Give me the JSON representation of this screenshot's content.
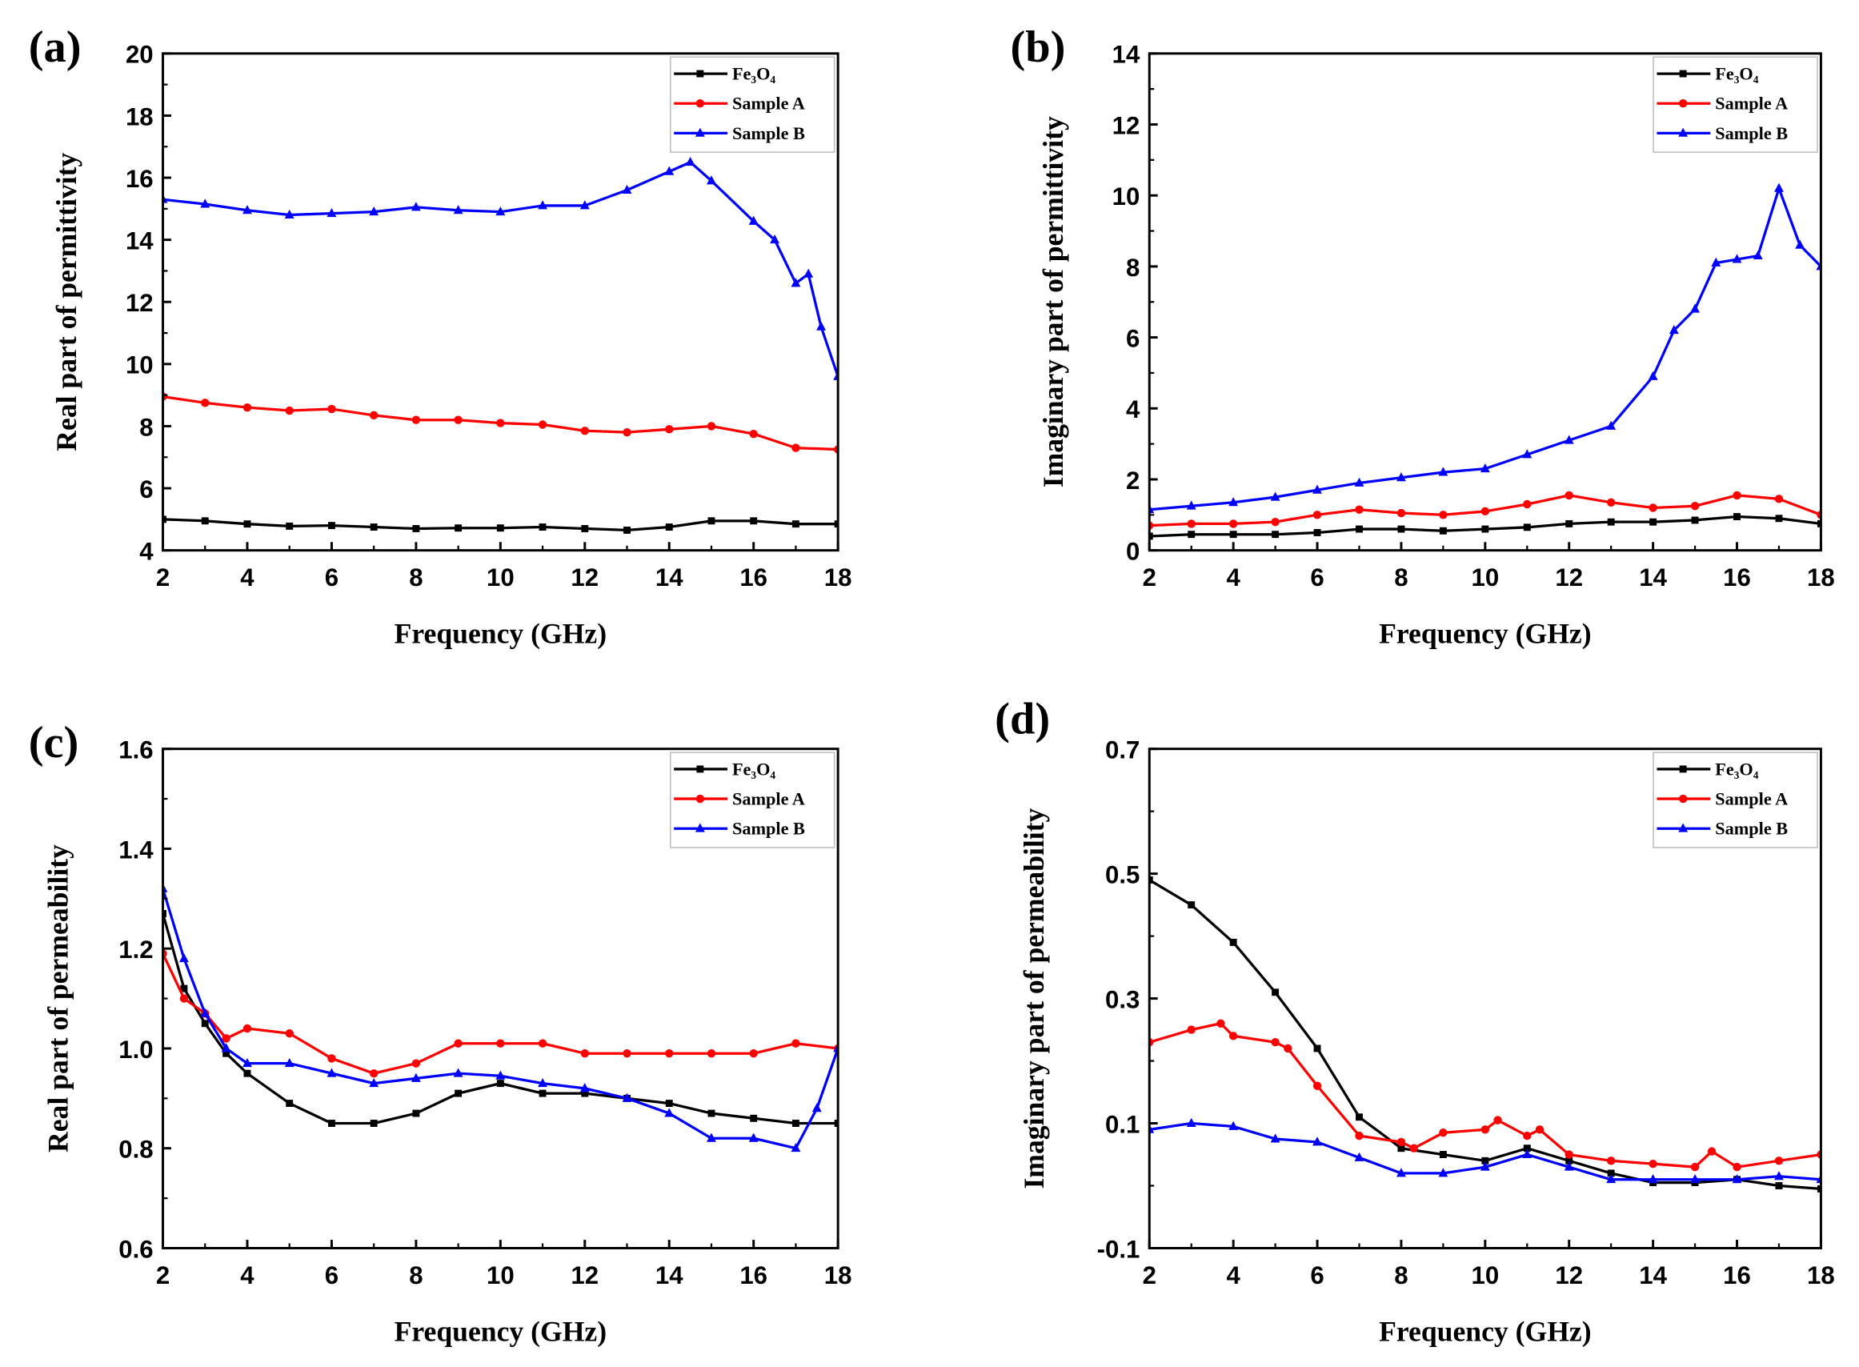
{
  "chart_data": [
    {
      "panel_label": "(a)",
      "type": "line",
      "xlabel": "Frequency (GHz)",
      "ylabel": "Real part of permittivity",
      "xlim": [
        2,
        18
      ],
      "ylim": [
        4,
        20
      ],
      "xticks": [
        "2",
        "4",
        "6",
        "8",
        "10",
        "12",
        "14",
        "16",
        "18"
      ],
      "yticks": [
        "4",
        "6",
        "8",
        "10",
        "12",
        "14",
        "16",
        "18",
        "20"
      ],
      "legend_position": "top-right",
      "series": [
        {
          "name": "Fe₃O₄",
          "color": "#000000",
          "marker": "square",
          "x": [
            2,
            3,
            4,
            5,
            6,
            7,
            8,
            9,
            10,
            11,
            12,
            13,
            14,
            15,
            16,
            17,
            18
          ],
          "y": [
            5.0,
            4.95,
            4.85,
            4.78,
            4.8,
            4.75,
            4.7,
            4.72,
            4.72,
            4.75,
            4.7,
            4.65,
            4.75,
            4.95,
            4.95,
            4.85,
            4.85
          ]
        },
        {
          "name": "Sample A",
          "color": "#ff0000",
          "marker": "circle",
          "x": [
            2,
            3,
            4,
            5,
            6,
            7,
            8,
            9,
            10,
            11,
            12,
            13,
            14,
            15,
            16,
            17,
            18
          ],
          "y": [
            8.95,
            8.75,
            8.6,
            8.5,
            8.55,
            8.35,
            8.2,
            8.2,
            8.1,
            8.05,
            7.85,
            7.8,
            7.9,
            8.0,
            7.75,
            7.3,
            7.25
          ]
        },
        {
          "name": "Sample B",
          "color": "#0000ff",
          "marker": "triangle",
          "x": [
            2,
            3,
            4,
            5,
            6,
            7,
            8,
            9,
            10,
            11,
            12,
            13,
            14,
            14.5,
            15,
            16,
            16.5,
            17,
            17.3,
            17.6,
            18
          ],
          "y": [
            15.3,
            15.15,
            14.95,
            14.8,
            14.85,
            14.9,
            15.05,
            14.95,
            14.9,
            15.1,
            15.1,
            15.6,
            16.2,
            16.5,
            15.9,
            14.6,
            14.0,
            12.6,
            12.9,
            11.2,
            9.6
          ]
        }
      ]
    },
    {
      "panel_label": "(b)",
      "type": "line",
      "xlabel": "Frequency (GHz)",
      "ylabel": "Imaginary part of permittivity",
      "xlim": [
        2,
        18
      ],
      "ylim": [
        0,
        14
      ],
      "xticks": [
        "2",
        "4",
        "6",
        "8",
        "10",
        "12",
        "14",
        "16",
        "18"
      ],
      "yticks": [
        "0",
        "2",
        "4",
        "6",
        "8",
        "10",
        "12",
        "14"
      ],
      "legend_position": "top-right",
      "series": [
        {
          "name": "Fe₃O₄",
          "color": "#000000",
          "marker": "square",
          "x": [
            2,
            3,
            4,
            5,
            6,
            7,
            8,
            9,
            10,
            11,
            12,
            13,
            14,
            15,
            16,
            17,
            18
          ],
          "y": [
            0.4,
            0.45,
            0.45,
            0.45,
            0.5,
            0.6,
            0.6,
            0.55,
            0.6,
            0.65,
            0.75,
            0.8,
            0.8,
            0.85,
            0.95,
            0.9,
            0.75
          ]
        },
        {
          "name": "Sample A",
          "color": "#ff0000",
          "marker": "circle",
          "x": [
            2,
            3,
            4,
            5,
            6,
            7,
            8,
            9,
            10,
            11,
            12,
            13,
            14,
            15,
            16,
            17,
            18
          ],
          "y": [
            0.7,
            0.75,
            0.75,
            0.8,
            1.0,
            1.15,
            1.05,
            1.0,
            1.1,
            1.3,
            1.55,
            1.35,
            1.2,
            1.25,
            1.55,
            1.45,
            1.0
          ]
        },
        {
          "name": "Sample B",
          "color": "#0000ff",
          "marker": "triangle",
          "x": [
            2,
            3,
            4,
            5,
            6,
            7,
            8,
            9,
            10,
            11,
            12,
            13,
            14,
            14.5,
            15,
            15.5,
            16,
            16.5,
            17,
            17.5,
            18
          ],
          "y": [
            1.15,
            1.25,
            1.35,
            1.5,
            1.7,
            1.9,
            2.05,
            2.2,
            2.3,
            2.7,
            3.1,
            3.5,
            4.9,
            6.2,
            6.8,
            8.1,
            8.2,
            8.3,
            10.2,
            8.6,
            8.0
          ]
        }
      ]
    },
    {
      "panel_label": "(c)",
      "type": "line",
      "xlabel": "Frequency (GHz)",
      "ylabel": "Real part of permeability",
      "xlim": [
        2,
        18
      ],
      "ylim": [
        0.6,
        1.6
      ],
      "xticks": [
        "2",
        "4",
        "6",
        "8",
        "10",
        "12",
        "14",
        "16",
        "18"
      ],
      "yticks": [
        "0.6",
        "0.8",
        "1.0",
        "1.2",
        "1.4",
        "1.6"
      ],
      "legend_position": "top-right",
      "series": [
        {
          "name": "Fe₃O₄",
          "color": "#000000",
          "marker": "square",
          "x": [
            2,
            2.5,
            3,
            3.5,
            4,
            5,
            6,
            7,
            8,
            9,
            10,
            11,
            12,
            13,
            14,
            15,
            16,
            17,
            18
          ],
          "y": [
            1.27,
            1.12,
            1.05,
            0.99,
            0.95,
            0.89,
            0.85,
            0.85,
            0.87,
            0.91,
            0.93,
            0.91,
            0.91,
            0.9,
            0.89,
            0.87,
            0.86,
            0.85,
            0.85
          ]
        },
        {
          "name": "Sample A",
          "color": "#ff0000",
          "marker": "circle",
          "x": [
            2,
            2.5,
            3,
            3.5,
            4,
            5,
            6,
            7,
            8,
            9,
            10,
            11,
            12,
            13,
            14,
            15,
            16,
            17,
            18
          ],
          "y": [
            1.19,
            1.1,
            1.07,
            1.02,
            1.04,
            1.03,
            0.98,
            0.95,
            0.97,
            1.01,
            1.01,
            1.01,
            0.99,
            0.99,
            0.99,
            0.99,
            0.99,
            1.01,
            1.0
          ]
        },
        {
          "name": "Sample B",
          "color": "#0000ff",
          "marker": "triangle",
          "x": [
            2,
            2.5,
            3,
            3.5,
            4,
            5,
            6,
            7,
            8,
            9,
            10,
            11,
            12,
            13,
            14,
            15,
            16,
            17,
            17.5,
            18
          ],
          "y": [
            1.32,
            1.18,
            1.07,
            1.0,
            0.97,
            0.97,
            0.95,
            0.93,
            0.94,
            0.95,
            0.945,
            0.93,
            0.92,
            0.9,
            0.87,
            0.82,
            0.82,
            0.8,
            0.88,
            1.0
          ]
        }
      ]
    },
    {
      "panel_label": "(d)",
      "type": "line",
      "xlabel": "Frequency (GHz)",
      "ylabel": "Imaginary part of permeability",
      "xlim": [
        2,
        18
      ],
      "ylim": [
        -0.1,
        0.7
      ],
      "xticks": [
        "2",
        "4",
        "6",
        "8",
        "10",
        "12",
        "14",
        "16",
        "18"
      ],
      "yticks": [
        "-0.1",
        "0.1",
        "0.3",
        "0.5",
        "0.7"
      ],
      "legend_position": "top-right",
      "series": [
        {
          "name": "Fe₃O₄",
          "color": "#000000",
          "marker": "square",
          "x": [
            2,
            3,
            4,
            5,
            6,
            7,
            8,
            9,
            10,
            11,
            12,
            13,
            14,
            15,
            16,
            17,
            18
          ],
          "y": [
            0.49,
            0.45,
            0.39,
            0.31,
            0.22,
            0.11,
            0.06,
            0.05,
            0.04,
            0.06,
            0.04,
            0.02,
            0.005,
            0.005,
            0.01,
            0.0,
            -0.005
          ]
        },
        {
          "name": "Sample A",
          "color": "#ff0000",
          "marker": "circle",
          "x": [
            2,
            3,
            3.7,
            4,
            5,
            5.3,
            6,
            7,
            8,
            8.3,
            9,
            10,
            10.3,
            11,
            11.3,
            12,
            13,
            14,
            15,
            15.4,
            16,
            17,
            18
          ],
          "y": [
            0.23,
            0.25,
            0.26,
            0.24,
            0.23,
            0.22,
            0.16,
            0.08,
            0.07,
            0.06,
            0.085,
            0.09,
            0.105,
            0.08,
            0.09,
            0.05,
            0.04,
            0.035,
            0.03,
            0.055,
            0.03,
            0.04,
            0.05
          ]
        },
        {
          "name": "Sample B",
          "color": "#0000ff",
          "marker": "triangle",
          "x": [
            2,
            3,
            4,
            5,
            6,
            7,
            8,
            9,
            10,
            11,
            12,
            13,
            14,
            15,
            16,
            17,
            18
          ],
          "y": [
            0.09,
            0.1,
            0.095,
            0.075,
            0.07,
            0.045,
            0.02,
            0.02,
            0.03,
            0.05,
            0.03,
            0.01,
            0.01,
            0.01,
            0.01,
            0.015,
            0.01
          ]
        }
      ]
    }
  ]
}
